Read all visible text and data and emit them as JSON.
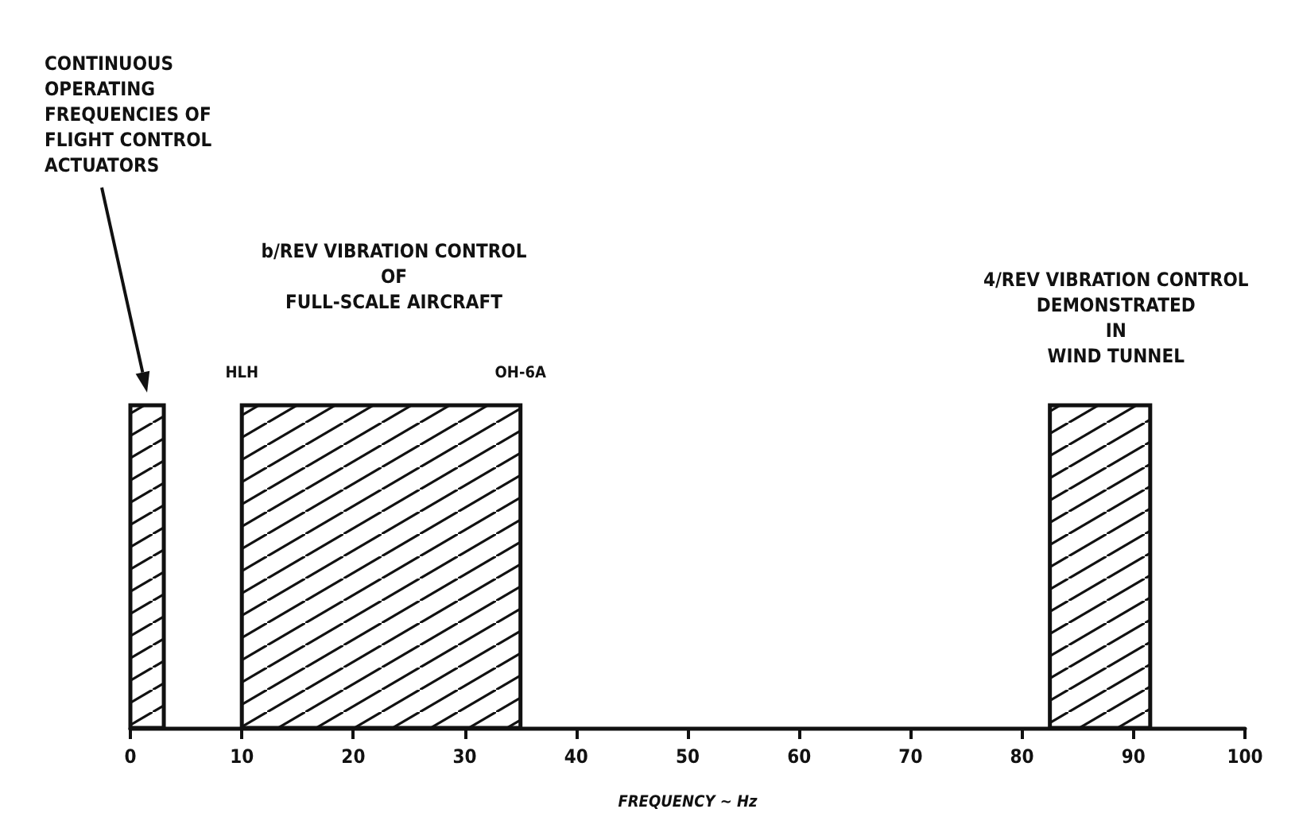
{
  "chart_data": {
    "type": "bar",
    "orientation": "horizontal",
    "xlabel": "FREQUENCY ~ Hz",
    "xlim": [
      0,
      100
    ],
    "xticks": [
      0,
      10,
      20,
      30,
      40,
      50,
      60,
      70,
      80,
      90,
      100
    ],
    "categories": [
      null
    ],
    "series": [
      {
        "color": "#111111",
        "values": [
          3
        ],
        "base": [
          0
        ]
      },
      {
        "color": "#111111",
        "values": [
          25
        ],
        "base": [
          10
        ]
      },
      {
        "color": "#111111",
        "values": [
          9
        ],
        "base": [
          82.5
        ]
      }
    ],
    "annotations": [
      "CONTINUOUS\nOPERATING\nFREQUENCIES OF\nFLIGHT CONTROL\nACTUATORS",
      "b/REV VIBRATION CONTROL\nOF\nFULL-SCALE AIRCRAFT",
      "4/REV VIBRATION CONTROL\nDEMONSTRATED\nIN\nWIND TUNNEL",
      "HLH",
      "OH-6A"
    ]
  }
}
